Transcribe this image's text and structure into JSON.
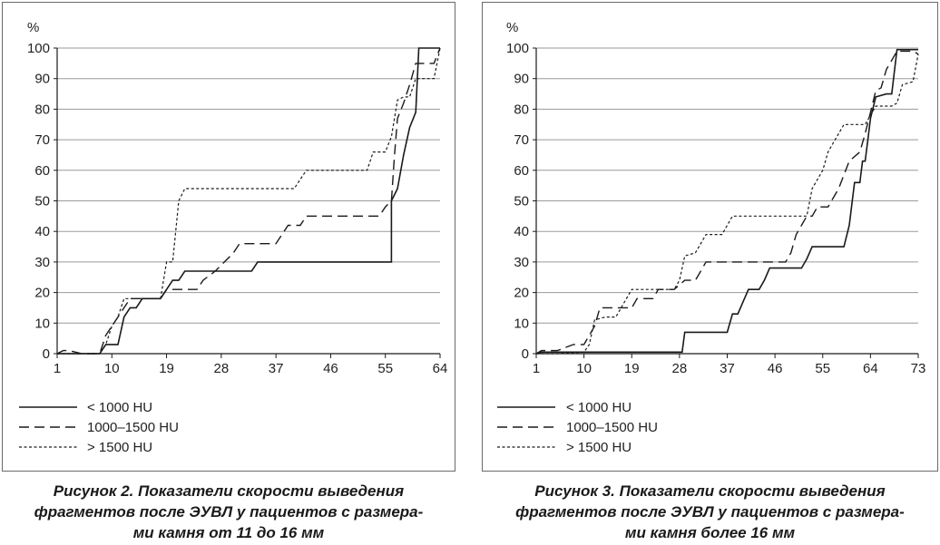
{
  "chart_data": [
    {
      "type": "line",
      "title": "",
      "ylabel": "%",
      "xlabel": "",
      "xlim": [
        1,
        64
      ],
      "ylim": [
        0,
        100
      ],
      "x_ticks": [
        1,
        10,
        19,
        28,
        37,
        46,
        55,
        64
      ],
      "y_ticks": [
        0,
        10,
        20,
        30,
        40,
        50,
        60,
        70,
        80,
        90,
        100
      ],
      "grid": "horizontal",
      "legend_position": "bottom-left",
      "series": [
        {
          "name": "< 1000 HU",
          "style": "solid",
          "points": [
            [
              1,
              0
            ],
            [
              7,
              0
            ],
            [
              8,
              0
            ],
            [
              9,
              3
            ],
            [
              10,
              3
            ],
            [
              11,
              3
            ],
            [
              12,
              12
            ],
            [
              13,
              15
            ],
            [
              14,
              15
            ],
            [
              15,
              18
            ],
            [
              18,
              18
            ],
            [
              19,
              21
            ],
            [
              20,
              24
            ],
            [
              21,
              24
            ],
            [
              22,
              27
            ],
            [
              26,
              27
            ],
            [
              30,
              27
            ],
            [
              33,
              27
            ],
            [
              34,
              30
            ],
            [
              45,
              30
            ],
            [
              50,
              30
            ],
            [
              55,
              30
            ],
            [
              56,
              30
            ],
            [
              56,
              50
            ],
            [
              57,
              54
            ],
            [
              58,
              65
            ],
            [
              59,
              74
            ],
            [
              60,
              79
            ],
            [
              60.5,
              100
            ],
            [
              64,
              100
            ]
          ]
        },
        {
          "name": "1000–1500 HU",
          "style": "dashed",
          "points": [
            [
              1,
              0
            ],
            [
              2,
              1
            ],
            [
              3,
              1
            ],
            [
              5,
              0
            ],
            [
              8,
              0
            ],
            [
              9,
              6
            ],
            [
              10,
              9
            ],
            [
              11,
              12
            ],
            [
              12,
              15
            ],
            [
              13,
              18
            ],
            [
              16,
              18
            ],
            [
              18,
              18
            ],
            [
              19,
              21
            ],
            [
              21,
              21
            ],
            [
              24,
              21
            ],
            [
              25,
              24
            ],
            [
              27,
              27
            ],
            [
              30,
              33
            ],
            [
              31,
              36
            ],
            [
              37,
              36
            ],
            [
              38,
              39
            ],
            [
              39,
              42
            ],
            [
              41,
              42
            ],
            [
              42,
              45
            ],
            [
              46,
              45
            ],
            [
              54,
              45
            ],
            [
              55,
              48
            ],
            [
              56,
              50
            ],
            [
              56.5,
              65
            ],
            [
              57,
              77
            ],
            [
              58,
              82
            ],
            [
              59,
              88
            ],
            [
              60,
              95
            ],
            [
              62,
              95
            ],
            [
              63,
              95
            ],
            [
              64,
              100
            ]
          ]
        },
        {
          "name": "> 1500 HU",
          "style": "dotted",
          "points": [
            [
              1,
              0
            ],
            [
              3,
              0
            ],
            [
              5,
              0
            ],
            [
              8,
              0
            ],
            [
              9,
              3
            ],
            [
              10,
              9
            ],
            [
              11,
              12
            ],
            [
              12,
              18
            ],
            [
              13,
              18
            ],
            [
              18,
              18
            ],
            [
              19,
              30
            ],
            [
              20,
              30
            ],
            [
              21,
              50
            ],
            [
              22,
              54
            ],
            [
              30,
              54
            ],
            [
              40,
              54
            ],
            [
              41,
              57
            ],
            [
              42,
              60
            ],
            [
              48,
              60
            ],
            [
              52,
              60
            ],
            [
              53,
              66
            ],
            [
              55,
              66
            ],
            [
              56,
              71
            ],
            [
              57,
              83
            ],
            [
              58,
              84
            ],
            [
              59,
              84
            ],
            [
              60,
              90
            ],
            [
              63,
              90
            ],
            [
              64,
              100
            ]
          ]
        }
      ]
    },
    {
      "type": "line",
      "title": "",
      "ylabel": "%",
      "xlabel": "",
      "xlim": [
        1,
        73
      ],
      "ylim": [
        0,
        100
      ],
      "x_ticks": [
        1,
        10,
        19,
        28,
        37,
        46,
        55,
        64,
        73
      ],
      "y_ticks": [
        0,
        10,
        20,
        30,
        40,
        50,
        60,
        70,
        80,
        90,
        100
      ],
      "grid": "horizontal",
      "legend_position": "bottom-left",
      "series": [
        {
          "name": "< 1000 HU",
          "style": "solid",
          "points": [
            [
              1,
              0
            ],
            [
              2,
              0.5
            ],
            [
              10,
              0.5
            ],
            [
              20,
              0.5
            ],
            [
              28,
              0.5
            ],
            [
              28.5,
              0.5
            ],
            [
              29,
              7
            ],
            [
              32,
              7
            ],
            [
              36,
              7
            ],
            [
              37,
              7
            ],
            [
              38,
              13
            ],
            [
              39,
              13
            ],
            [
              40,
              17
            ],
            [
              41,
              21
            ],
            [
              42,
              21
            ],
            [
              43,
              21
            ],
            [
              44,
              24
            ],
            [
              45,
              28
            ],
            [
              51,
              28
            ],
            [
              52,
              31
            ],
            [
              53,
              35
            ],
            [
              55,
              35
            ],
            [
              59,
              35
            ],
            [
              60,
              42
            ],
            [
              60.5,
              49
            ],
            [
              61,
              56
            ],
            [
              62,
              56
            ],
            [
              62.5,
              63
            ],
            [
              63,
              63
            ],
            [
              63.5,
              70
            ],
            [
              64,
              77
            ],
            [
              65,
              84
            ],
            [
              67,
              85
            ],
            [
              68,
              85
            ],
            [
              69,
              99.5
            ],
            [
              73,
              99.5
            ]
          ]
        },
        {
          "name": "1000–1500 HU",
          "style": "dashed",
          "points": [
            [
              1,
              0
            ],
            [
              2,
              1
            ],
            [
              5,
              1
            ],
            [
              8,
              3
            ],
            [
              10,
              3
            ],
            [
              11,
              6
            ],
            [
              12,
              9
            ],
            [
              13,
              15
            ],
            [
              15,
              15
            ],
            [
              17,
              15
            ],
            [
              19,
              15
            ],
            [
              20,
              18
            ],
            [
              22,
              18
            ],
            [
              23,
              18
            ],
            [
              24,
              21
            ],
            [
              27,
              21
            ],
            [
              29,
              24
            ],
            [
              31,
              24
            ],
            [
              32,
              27
            ],
            [
              33,
              30
            ],
            [
              40,
              30
            ],
            [
              44,
              30
            ],
            [
              48,
              30
            ],
            [
              49,
              33
            ],
            [
              50,
              39
            ],
            [
              52,
              45
            ],
            [
              53,
              45
            ],
            [
              54,
              48
            ],
            [
              56,
              48
            ],
            [
              57,
              51
            ],
            [
              58,
              54
            ],
            [
              60,
              63
            ],
            [
              62,
              66
            ],
            [
              63,
              72
            ],
            [
              64,
              79
            ],
            [
              65,
              86
            ],
            [
              66,
              87
            ],
            [
              67,
              93
            ],
            [
              68,
              96
            ],
            [
              69,
              99
            ],
            [
              72,
              99
            ],
            [
              73,
              98
            ]
          ]
        },
        {
          "name": "> 1500 HU",
          "style": "dotted",
          "points": [
            [
              1,
              0
            ],
            [
              5,
              0
            ],
            [
              10,
              0.5
            ],
            [
              11,
              3
            ],
            [
              12,
              11
            ],
            [
              14,
              12
            ],
            [
              16,
              12
            ],
            [
              17,
              15
            ],
            [
              18,
              18
            ],
            [
              19,
              21
            ],
            [
              24,
              21
            ],
            [
              27,
              21
            ],
            [
              28,
              24
            ],
            [
              29,
              32
            ],
            [
              31,
              33
            ],
            [
              32,
              36
            ],
            [
              33,
              39
            ],
            [
              36,
              39
            ],
            [
              37,
              42
            ],
            [
              38,
              45
            ],
            [
              44,
              45
            ],
            [
              48,
              45
            ],
            [
              52,
              45
            ],
            [
              53,
              54
            ],
            [
              54,
              57
            ],
            [
              55,
              60
            ],
            [
              56,
              66
            ],
            [
              57,
              69
            ],
            [
              58,
              72
            ],
            [
              59,
              75
            ],
            [
              62,
              75
            ],
            [
              63,
              75
            ],
            [
              64,
              78
            ],
            [
              65,
              81
            ],
            [
              67,
              81
            ],
            [
              68,
              81
            ],
            [
              69,
              82
            ],
            [
              70,
              88
            ],
            [
              72,
              89
            ],
            [
              73,
              98
            ]
          ]
        }
      ]
    }
  ],
  "captions": [
    {
      "line1": "Рисунок 2. Показатели скорости выведения",
      "line2": "фрагментов после ЭУВЛ у пациентов с размера-",
      "line3": "ми камня от 11 до 16 мм"
    },
    {
      "line1": "Рисунок 3. Показатели скорости выведения",
      "line2": "фрагментов после ЭУВЛ у пациентов с размера-",
      "line3": "ми камня более 16 мм"
    }
  ],
  "colors": {
    "line": "#1a1a1a",
    "grid": "#9a9a9a",
    "border": "#6a6a6a",
    "axis": "#1a1a1a"
  }
}
